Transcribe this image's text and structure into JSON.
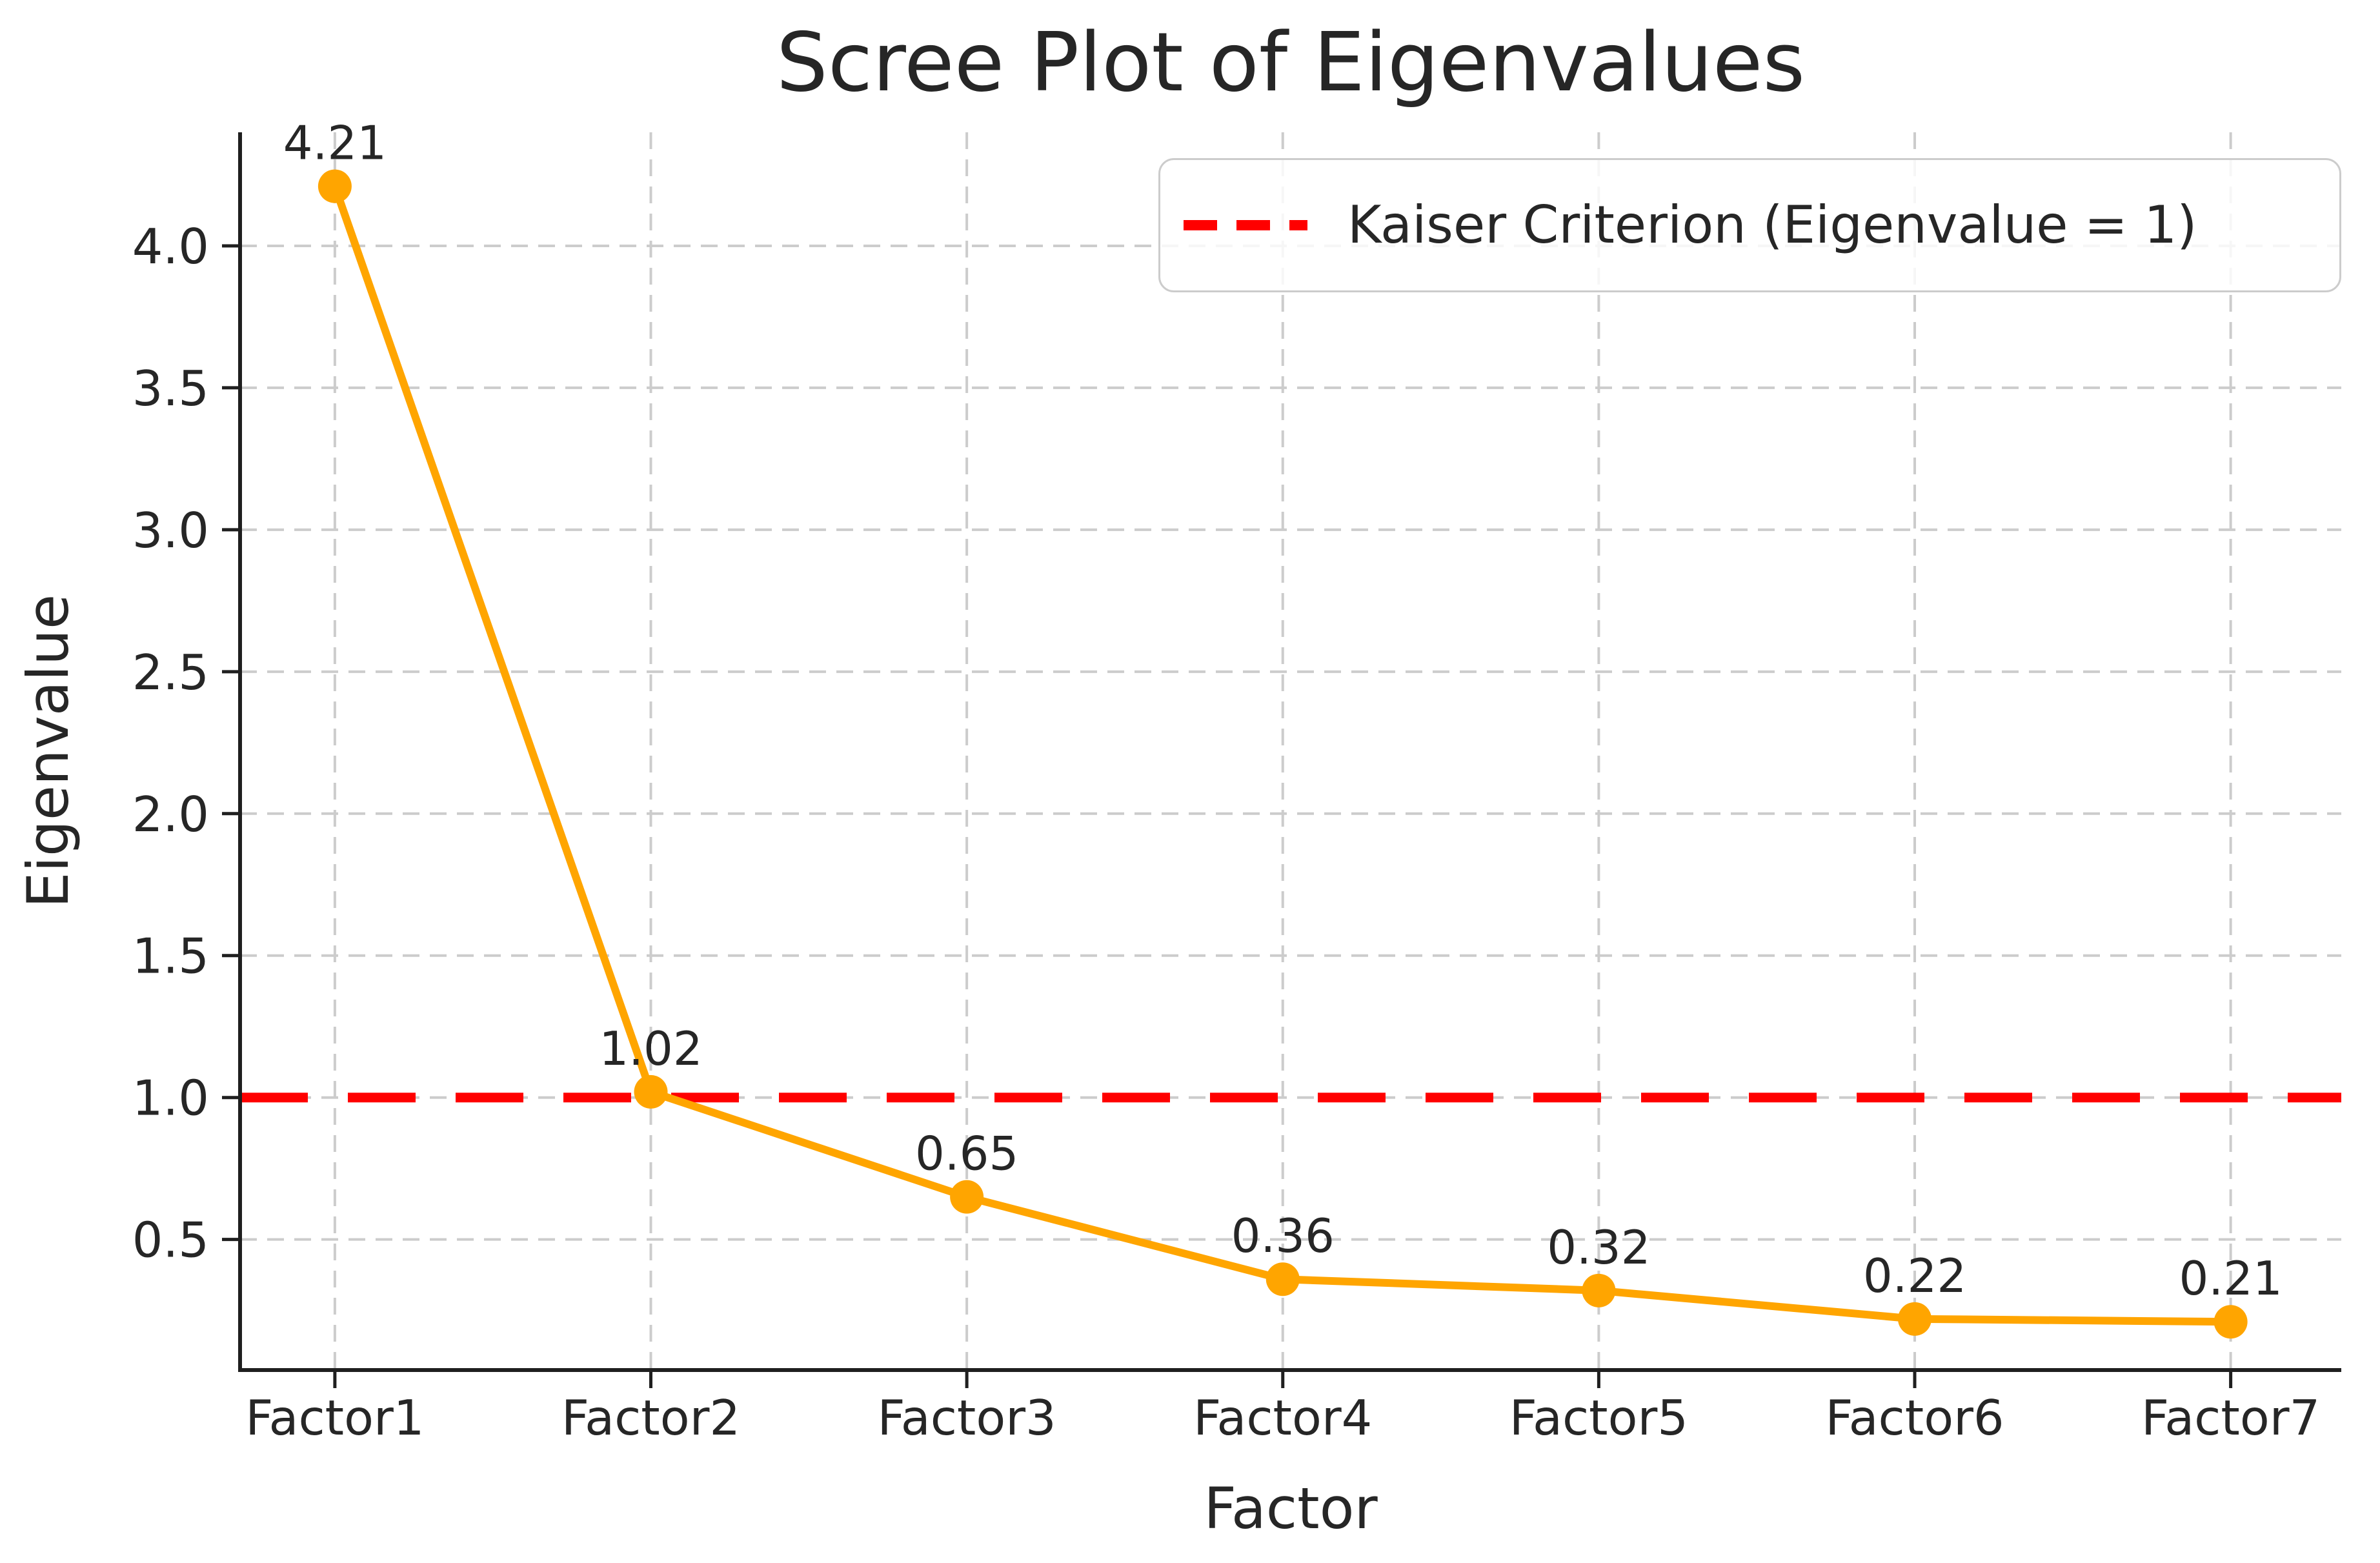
{
  "figure": {
    "title": "Scree Plot of Eigenvalues",
    "xlabel": "Factor",
    "ylabel": "Eigenvalue"
  },
  "legend": {
    "label": "Kaiser Criterion (Eigenvalue = 1)",
    "position": "upper right",
    "line_color": "#ff0000",
    "line_style": "dashed"
  },
  "colors": {
    "series_line": "#FFA500",
    "marker": "#FFA500",
    "reference_line": "#ff0000",
    "grid": "#cccccc",
    "text": "#262626",
    "spine": "#1f1f1f",
    "legend_border": "#cccccc"
  },
  "chart_data": {
    "type": "line",
    "title": "Scree Plot of Eigenvalues",
    "xlabel": "Factor",
    "ylabel": "Eigenvalue",
    "categories": [
      "Factor1",
      "Factor2",
      "Factor3",
      "Factor4",
      "Factor5",
      "Factor6",
      "Factor7"
    ],
    "series": [
      {
        "name": "Eigenvalues",
        "values": [
          4.21,
          1.02,
          0.65,
          0.36,
          0.32,
          0.22,
          0.21
        ],
        "color": "#FFA500",
        "marker": "circle",
        "style": "solid"
      }
    ],
    "point_labels": [
      "4.21",
      "1.02",
      "0.65",
      "0.36",
      "0.32",
      "0.22",
      "0.21"
    ],
    "yticks": [
      0.5,
      1.0,
      1.5,
      2.0,
      2.5,
      3.0,
      3.5,
      4.0
    ],
    "yticklabels": [
      "0.5",
      "1.0",
      "1.5",
      "2.0",
      "2.5",
      "3.0",
      "3.5",
      "4.0"
    ],
    "ylim": [
      0.04,
      4.4
    ],
    "xlim": [
      -0.3,
      6.35
    ],
    "grid": true,
    "grid_style": "dashed",
    "reference_line": {
      "value": 1.0,
      "color": "#ff0000",
      "style": "dashed",
      "label": "Kaiser Criterion (Eigenvalue = 1)"
    },
    "legend_position": "upper right"
  }
}
